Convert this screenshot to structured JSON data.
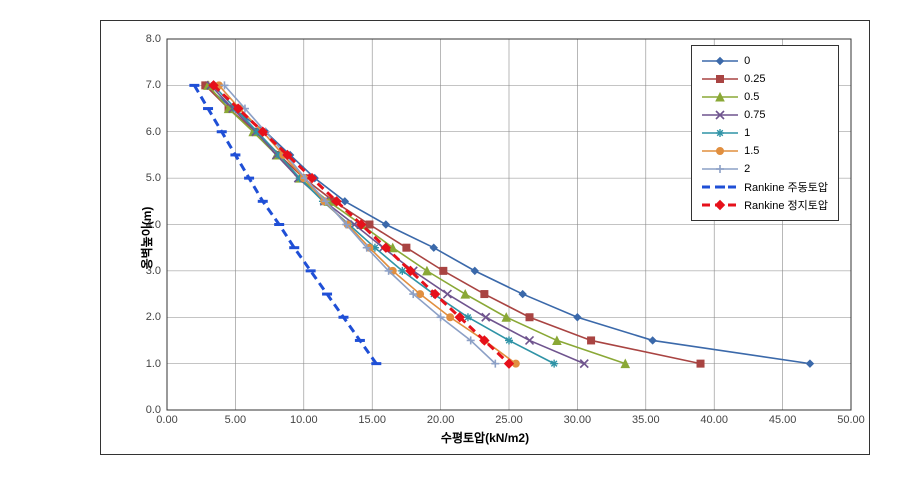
{
  "chart": {
    "type": "line",
    "title": null,
    "background_color": "#ffffff",
    "grid_color": "#888888",
    "border_color": "#333333",
    "x_axis": {
      "label": "수평토압(kN/m2)",
      "label_fontsize": 12,
      "min": 0,
      "max": 50,
      "tick_step": 5,
      "tick_labels": [
        "0.00",
        "5.00",
        "10.00",
        "15.00",
        "20.00",
        "25.00",
        "30.00",
        "35.00",
        "40.00",
        "45.00",
        "50.00"
      ]
    },
    "y_axis": {
      "label": "옹벽높이(m)",
      "label_fontsize": 12,
      "min": 0,
      "max": 8,
      "tick_step": 1,
      "tick_labels": [
        "0.0",
        "1.0",
        "2.0",
        "3.0",
        "4.0",
        "5.0",
        "6.0",
        "7.0",
        "8.0"
      ]
    },
    "legend_position": "top-right",
    "series": [
      {
        "label": "0",
        "color": "#3b69aa",
        "width": 1.6,
        "dash": null,
        "marker": "diamond",
        "m_size": 7,
        "data": [
          [
            2.8,
            7.0
          ],
          [
            4.8,
            6.5
          ],
          [
            7.2,
            6.0
          ],
          [
            9.0,
            5.5
          ],
          [
            10.8,
            5.0
          ],
          [
            13.0,
            4.5
          ],
          [
            16.0,
            4.0
          ],
          [
            19.5,
            3.5
          ],
          [
            22.5,
            3.0
          ],
          [
            26.0,
            2.5
          ],
          [
            30.0,
            2.0
          ],
          [
            35.5,
            1.5
          ],
          [
            47.0,
            1.0
          ]
        ]
      },
      {
        "label": "0.25",
        "color": "#a94442",
        "width": 1.6,
        "dash": null,
        "marker": "square",
        "m_size": 7,
        "data": [
          [
            2.8,
            7.0
          ],
          [
            4.5,
            6.5
          ],
          [
            6.5,
            6.0
          ],
          [
            8.2,
            5.5
          ],
          [
            10.0,
            5.0
          ],
          [
            12.2,
            4.5
          ],
          [
            14.8,
            4.0
          ],
          [
            17.5,
            3.5
          ],
          [
            20.2,
            3.0
          ],
          [
            23.2,
            2.5
          ],
          [
            26.5,
            2.0
          ],
          [
            31.0,
            1.5
          ],
          [
            39.0,
            1.0
          ]
        ]
      },
      {
        "label": "0.5",
        "color": "#8aa836",
        "width": 1.6,
        "dash": null,
        "marker": "triangle",
        "m_size": 8,
        "data": [
          [
            3.0,
            7.0
          ],
          [
            4.5,
            6.5
          ],
          [
            6.3,
            6.0
          ],
          [
            8.0,
            5.5
          ],
          [
            9.7,
            5.0
          ],
          [
            11.8,
            4.5
          ],
          [
            14.2,
            4.0
          ],
          [
            16.5,
            3.5
          ],
          [
            19.0,
            3.0
          ],
          [
            21.8,
            2.5
          ],
          [
            24.8,
            2.0
          ],
          [
            28.5,
            1.5
          ],
          [
            33.5,
            1.0
          ]
        ]
      },
      {
        "label": "0.75",
        "color": "#6f548e",
        "width": 1.6,
        "dash": null,
        "marker": "x",
        "m_size": 8,
        "data": [
          [
            3.2,
            7.0
          ],
          [
            4.8,
            6.5
          ],
          [
            6.5,
            6.0
          ],
          [
            8.0,
            5.5
          ],
          [
            9.6,
            5.0
          ],
          [
            11.5,
            4.5
          ],
          [
            13.7,
            4.0
          ],
          [
            15.8,
            3.5
          ],
          [
            18.0,
            3.0
          ],
          [
            20.5,
            2.5
          ],
          [
            23.3,
            2.0
          ],
          [
            26.5,
            1.5
          ],
          [
            30.5,
            1.0
          ]
        ]
      },
      {
        "label": "1",
        "color": "#2f93a6",
        "width": 1.6,
        "dash": null,
        "marker": "star",
        "m_size": 8,
        "data": [
          [
            3.4,
            7.0
          ],
          [
            5.0,
            6.5
          ],
          [
            6.6,
            6.0
          ],
          [
            8.2,
            5.5
          ],
          [
            9.7,
            5.0
          ],
          [
            11.4,
            4.5
          ],
          [
            13.3,
            4.0
          ],
          [
            15.2,
            3.5
          ],
          [
            17.2,
            3.0
          ],
          [
            19.5,
            2.5
          ],
          [
            22.0,
            2.0
          ],
          [
            25.0,
            1.5
          ],
          [
            28.3,
            1.0
          ]
        ]
      },
      {
        "label": "1.5",
        "color": "#e18f3f",
        "width": 1.6,
        "dash": null,
        "marker": "circle",
        "m_size": 7,
        "data": [
          [
            3.8,
            7.0
          ],
          [
            5.3,
            6.5
          ],
          [
            7.0,
            6.0
          ],
          [
            8.5,
            5.5
          ],
          [
            10.0,
            5.0
          ],
          [
            11.5,
            4.5
          ],
          [
            13.2,
            4.0
          ],
          [
            14.8,
            3.5
          ],
          [
            16.5,
            3.0
          ],
          [
            18.5,
            2.5
          ],
          [
            20.7,
            2.0
          ],
          [
            23.2,
            1.5
          ],
          [
            25.5,
            1.0
          ]
        ]
      },
      {
        "label": "2",
        "color": "#8ca0c6",
        "width": 1.6,
        "dash": null,
        "marker": "plus",
        "m_size": 8,
        "data": [
          [
            4.2,
            7.0
          ],
          [
            5.7,
            6.5
          ],
          [
            7.2,
            6.0
          ],
          [
            8.7,
            5.5
          ],
          [
            10.1,
            5.0
          ],
          [
            11.6,
            4.5
          ],
          [
            13.1,
            4.0
          ],
          [
            14.6,
            3.5
          ],
          [
            16.2,
            3.0
          ],
          [
            18.0,
            2.5
          ],
          [
            20.0,
            2.0
          ],
          [
            22.2,
            1.5
          ],
          [
            24.0,
            1.0
          ]
        ]
      },
      {
        "label": "Rankine 주동토압",
        "color": "#1f4fd6",
        "width": 3.0,
        "dash": "8,5",
        "marker": "dash",
        "m_size": 10,
        "data": [
          [
            2.0,
            7.0
          ],
          [
            3.0,
            6.5
          ],
          [
            4.0,
            6.0
          ],
          [
            5.0,
            5.5
          ],
          [
            6.0,
            5.0
          ],
          [
            7.0,
            4.5
          ],
          [
            8.2,
            4.0
          ],
          [
            9.3,
            3.5
          ],
          [
            10.5,
            3.0
          ],
          [
            11.7,
            2.5
          ],
          [
            12.9,
            2.0
          ],
          [
            14.1,
            1.5
          ],
          [
            15.3,
            1.0
          ]
        ]
      },
      {
        "label": "Rankine 정지토압",
        "color": "#e6111b",
        "width": 3.0,
        "dash": "8,5",
        "marker": "diamond",
        "m_size": 9,
        "data": [
          [
            3.4,
            7.0
          ],
          [
            5.2,
            6.5
          ],
          [
            7.0,
            6.0
          ],
          [
            8.8,
            5.5
          ],
          [
            10.6,
            5.0
          ],
          [
            12.4,
            4.5
          ],
          [
            14.2,
            4.0
          ],
          [
            16.0,
            3.5
          ],
          [
            17.8,
            3.0
          ],
          [
            19.6,
            2.5
          ],
          [
            21.4,
            2.0
          ],
          [
            23.2,
            1.5
          ],
          [
            25.0,
            1.0
          ]
        ]
      }
    ]
  }
}
